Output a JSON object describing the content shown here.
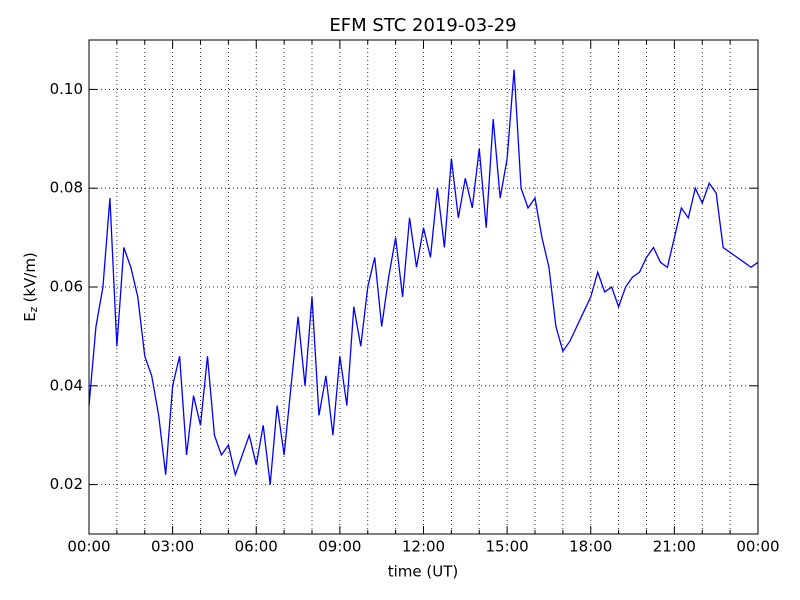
{
  "chart_data": {
    "type": "line",
    "title": "EFM STC     2019-03-29",
    "xlabel": "time (UT)",
    "ylabel_main": "E",
    "ylabel_subscript": "z",
    "ylabel_rest": "(kV/m)",
    "xlim": [
      0,
      24
    ],
    "ylim": [
      0.01,
      0.11
    ],
    "xticks": [
      {
        "value": 0,
        "label": "00:00"
      },
      {
        "value": 3,
        "label": "03:00"
      },
      {
        "value": 6,
        "label": "06:00"
      },
      {
        "value": 9,
        "label": "09:00"
      },
      {
        "value": 12,
        "label": "12:00"
      },
      {
        "value": 15,
        "label": "15:00"
      },
      {
        "value": 18,
        "label": "18:00"
      },
      {
        "value": 21,
        "label": "21:00"
      },
      {
        "value": 24,
        "label": "00:00"
      }
    ],
    "x_minor_ticks": [
      1,
      2,
      4,
      5,
      7,
      8,
      10,
      11,
      13,
      14,
      16,
      17,
      19,
      20,
      22,
      23
    ],
    "yticks": [
      0.02,
      0.04,
      0.06,
      0.08,
      {
        "value": 0.1,
        "label": "0.10"
      }
    ],
    "grid": true,
    "x": [
      0,
      0.25,
      0.5,
      0.75,
      1,
      1.25,
      1.5,
      1.75,
      2,
      2.25,
      2.5,
      2.75,
      3,
      3.25,
      3.5,
      3.75,
      4,
      4.25,
      4.5,
      4.75,
      5,
      5.25,
      5.5,
      5.75,
      6,
      6.25,
      6.5,
      6.75,
      7,
      7.25,
      7.5,
      7.75,
      8,
      8.25,
      8.5,
      8.75,
      9,
      9.25,
      9.5,
      9.75,
      10,
      10.25,
      10.5,
      10.75,
      11,
      11.25,
      11.5,
      11.75,
      12,
      12.25,
      12.5,
      12.75,
      13,
      13.25,
      13.5,
      13.75,
      14,
      14.25,
      14.5,
      14.75,
      15,
      15.25,
      15.5,
      15.75,
      16,
      16.25,
      16.5,
      16.75,
      17,
      17.25,
      17.5,
      17.75,
      18,
      18.25,
      18.5,
      18.75,
      19,
      19.25,
      19.5,
      19.75,
      20,
      20.25,
      20.5,
      20.75,
      21,
      21.25,
      21.5,
      21.75,
      22,
      22.25,
      22.5,
      22.75,
      23,
      23.25,
      23.5,
      23.75,
      24
    ],
    "series": [
      {
        "color": "#0000ff",
        "values": [
          0.036,
          0.052,
          0.06,
          0.078,
          0.048,
          0.068,
          0.064,
          0.058,
          0.046,
          0.042,
          0.034,
          0.022,
          0.04,
          0.046,
          0.026,
          0.038,
          0.032,
          0.046,
          0.03,
          0.026,
          0.028,
          0.022,
          0.026,
          0.03,
          0.024,
          0.032,
          0.02,
          0.036,
          0.026,
          0.04,
          0.054,
          0.04,
          0.058,
          0.034,
          0.042,
          0.03,
          0.046,
          0.036,
          0.056,
          0.048,
          0.06,
          0.066,
          0.052,
          0.062,
          0.07,
          0.058,
          0.074,
          0.064,
          0.072,
          0.066,
          0.08,
          0.068,
          0.086,
          0.074,
          0.082,
          0.076,
          0.088,
          0.072,
          0.094,
          0.078,
          0.086,
          0.104,
          0.08,
          0.076,
          0.078,
          0.07,
          0.064,
          0.052,
          0.047,
          0.049,
          0.052,
          0.055,
          0.058,
          0.063,
          0.059,
          0.06,
          0.056,
          0.06,
          0.062,
          0.063,
          0.066,
          0.068,
          0.065,
          0.064,
          0.07,
          0.076,
          0.074,
          0.08,
          0.077,
          0.081,
          0.079,
          0.068,
          0.067,
          0.066,
          0.065,
          0.064,
          0.065
        ]
      }
    ]
  }
}
